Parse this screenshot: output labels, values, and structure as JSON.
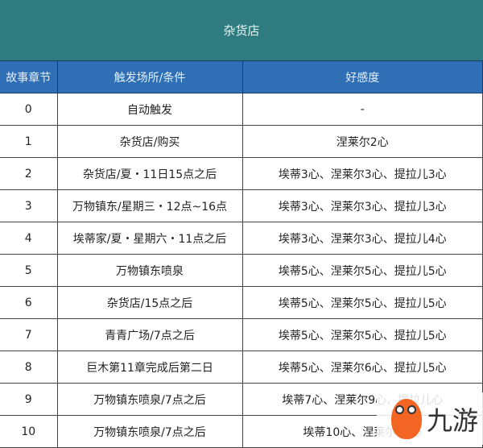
{
  "title": "杂货店",
  "headers": [
    "故事章节",
    "触发场所/条件",
    "好感度"
  ],
  "rows": [
    [
      "0",
      "自动触发",
      "-"
    ],
    [
      "1",
      "杂货店/购买",
      "涅莱尔2心"
    ],
    [
      "2",
      "杂货店/夏・11日15点之后",
      "埃蒂3心、涅莱尔3心、提拉儿3心"
    ],
    [
      "3",
      "万物镇东/星期三・12点~16点",
      "埃蒂3心、涅莱尔3心、提拉儿3心"
    ],
    [
      "4",
      "埃蒂家/夏・星期六・11点之后",
      "埃蒂3心、涅莱尔3心、提拉儿4心"
    ],
    [
      "5",
      "万物镇东喷泉",
      "埃蒂5心、涅莱尔5心、提拉儿5心"
    ],
    [
      "6",
      "杂货店/15点之后",
      "埃蒂5心、涅莱尔5心、提拉儿5心"
    ],
    [
      "7",
      "青青广场/7点之后",
      "埃蒂5心、涅莱尔5心、提拉儿5心"
    ],
    [
      "8",
      "巨木第11章完成后第二日",
      "埃蒂5心、涅莱尔6心、提拉儿5心"
    ],
    [
      "9",
      "万物镇东喷泉/7点之后",
      "埃蒂7心、涅莱尔9心、提拉儿心"
    ],
    [
      "10",
      "万物镇东喷泉/7点之后",
      "埃蒂10心、涅莱尔10心"
    ]
  ],
  "watermark": "九游"
}
